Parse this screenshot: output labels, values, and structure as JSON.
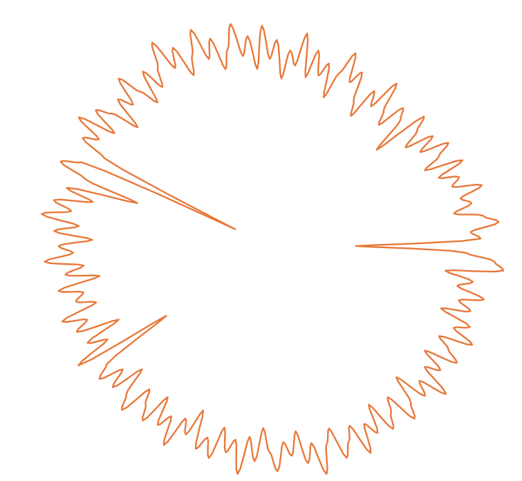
{
  "chart_data": {
    "type": "line",
    "projection": "polar",
    "axes_visible": false,
    "grid": false,
    "color": "#E8783A",
    "theta_unit": "degrees",
    "theta_start": 0,
    "theta_step": 2,
    "r": [
      36,
      88,
      84,
      96,
      90,
      78,
      86,
      82,
      92,
      80,
      84,
      76,
      88,
      72,
      80,
      86,
      74,
      82,
      70,
      78,
      84,
      60,
      76,
      80,
      68,
      74,
      86,
      72,
      78,
      64,
      70,
      82,
      76,
      88,
      78,
      66,
      80,
      74,
      84,
      72,
      90,
      76,
      82,
      70,
      86,
      78,
      92,
      74,
      88,
      80,
      94,
      84,
      76,
      90,
      82,
      96,
      86,
      78,
      92,
      84,
      98,
      88,
      80,
      90,
      76,
      84,
      94,
      82,
      88,
      74,
      86,
      92,
      80,
      96,
      84,
      90,
      78,
      16,
      86,
      94,
      82,
      58,
      88,
      76,
      92,
      84,
      96,
      80,
      90,
      74,
      88,
      82,
      94,
      78,
      86,
      72,
      90,
      80,
      84,
      76,
      92,
      82,
      88,
      70,
      86,
      78,
      94,
      52,
      84,
      90,
      80,
      88,
      74,
      86,
      92,
      78,
      84,
      90,
      76,
      88,
      82,
      94,
      80,
      86,
      74,
      90,
      84,
      92,
      78,
      88,
      82,
      96,
      80,
      90,
      76,
      86,
      94,
      82,
      88,
      78,
      92,
      84,
      98,
      86,
      80,
      94,
      88,
      82,
      96,
      84,
      90,
      78,
      92,
      86,
      80,
      94,
      88,
      76,
      90,
      84,
      96,
      82,
      88,
      78,
      92,
      86,
      80,
      94,
      84,
      90,
      76,
      88,
      82,
      92,
      80,
      86,
      74,
      98,
      94,
      82
    ]
  }
}
